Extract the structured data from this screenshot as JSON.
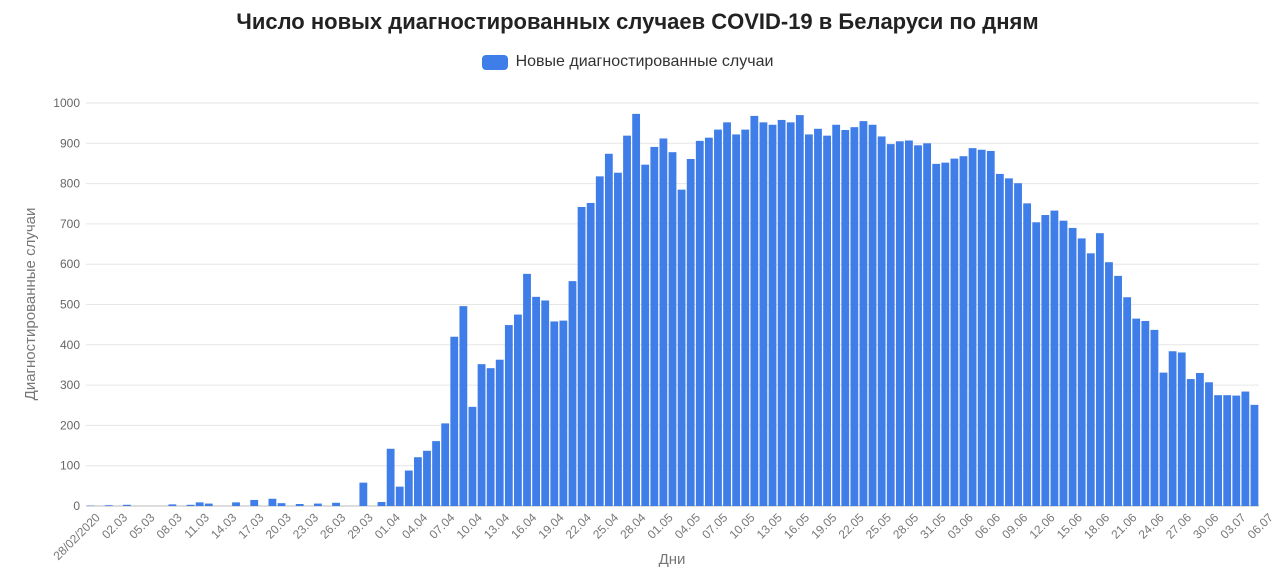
{
  "chart_data": {
    "type": "bar",
    "title": "Число новых диагностированных случаев COVID-19 в Беларуси по дням",
    "xlabel": "Дни",
    "ylabel": "Диагностированные случаи",
    "ylim": [
      0,
      1000
    ],
    "y_ticks": [
      0,
      100,
      200,
      300,
      400,
      500,
      600,
      700,
      800,
      900,
      1000
    ],
    "grid": true,
    "legend_position": "top-center",
    "bar_color": "#3f7ee8",
    "series": [
      {
        "name": "Новые диагностированные случаи",
        "values": [
          1,
          0,
          2,
          0,
          3,
          0,
          0,
          0,
          0,
          4,
          0,
          3,
          9,
          6,
          0,
          0,
          9,
          0,
          15,
          0,
          18,
          7,
          0,
          5,
          0,
          6,
          0,
          8,
          0,
          0,
          58,
          0,
          10,
          142,
          48,
          88,
          121,
          137,
          161,
          205,
          420,
          496,
          246,
          352,
          342,
          363,
          449,
          475,
          576,
          519,
          510,
          458,
          460,
          558,
          742,
          752,
          818,
          874,
          827,
          919,
          973,
          847,
          891,
          912,
          878,
          785,
          861,
          906,
          914,
          934,
          952,
          922,
          934,
          968,
          952,
          946,
          958,
          952,
          970,
          922,
          936,
          919,
          946,
          933,
          940,
          955,
          946,
          917,
          898,
          905,
          907,
          895,
          900,
          849,
          852,
          862,
          868,
          888,
          884,
          881,
          824,
          813,
          801,
          751,
          704,
          722,
          733,
          708,
          690,
          664,
          627,
          677,
          605,
          571,
          518,
          465,
          459,
          437,
          331,
          384,
          381,
          315,
          330,
          307,
          275,
          275,
          274,
          284,
          251
        ]
      }
    ],
    "tick_labels": [
      "28/02/2020",
      "02.03",
      "05.03",
      "08.03",
      "11.03",
      "14.03",
      "17.03",
      "20.03",
      "23.03",
      "26.03",
      "29.03",
      "01.04",
      "04.04",
      "07.04",
      "10.04",
      "13.04",
      "16.04",
      "19.04",
      "22.04",
      "25.04",
      "28.04",
      "01.05",
      "04.05",
      "07.05",
      "10.05",
      "13.05",
      "16.05",
      "19.05",
      "22.05",
      "25.05",
      "28.05",
      "31.05",
      "03.06",
      "06.06",
      "09.06",
      "12.06",
      "15.06",
      "18.06",
      "21.06",
      "24.06",
      "27.06",
      "30.06",
      "03.07",
      "06.07"
    ]
  }
}
